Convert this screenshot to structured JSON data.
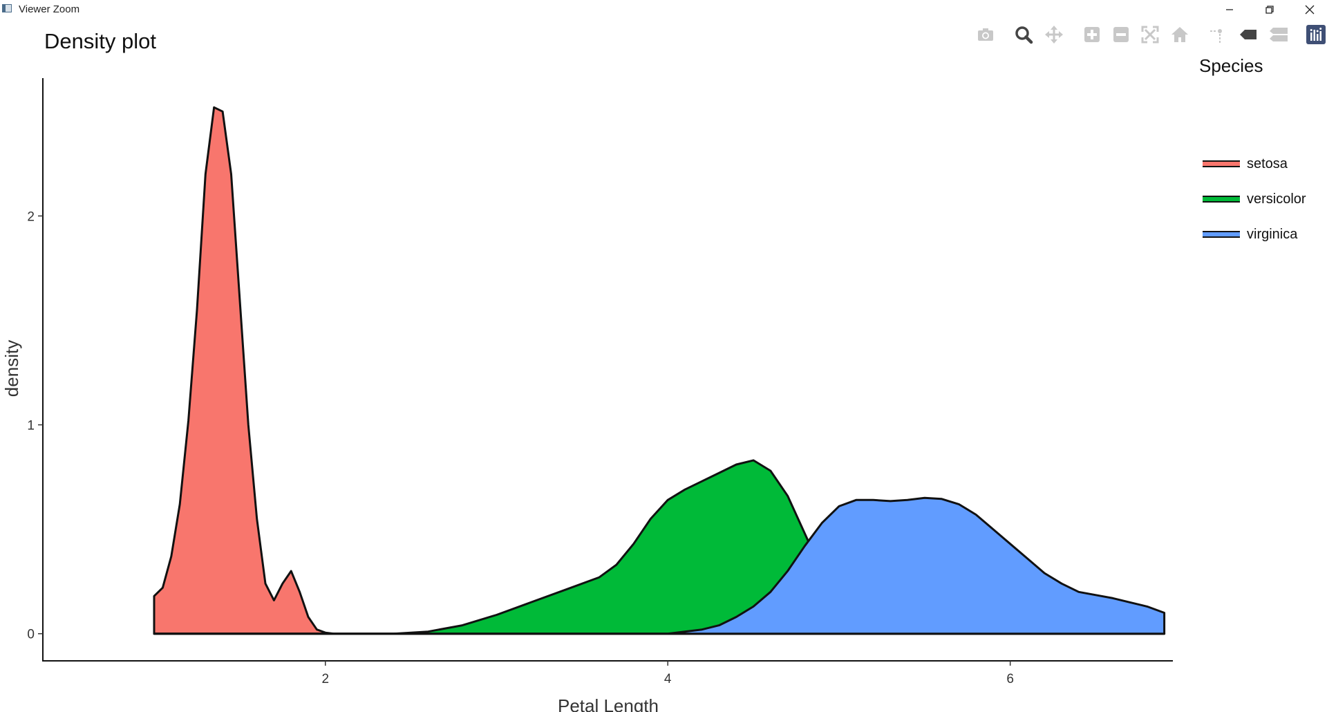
{
  "window": {
    "title": "Viewer Zoom",
    "controls": [
      "minimize-icon",
      "restore-icon",
      "close-icon"
    ]
  },
  "modebar": {
    "buttons": [
      {
        "name": "camera-icon",
        "label": "Download plot as a png"
      },
      {
        "name": "zoom-icon",
        "label": "Zoom"
      },
      {
        "name": "pan-icon",
        "label": "Pan"
      },
      {
        "name": "zoom-in-icon",
        "label": "Zoom in"
      },
      {
        "name": "zoom-out-icon",
        "label": "Zoom out"
      },
      {
        "name": "autoscale-icon",
        "label": "Autoscale"
      },
      {
        "name": "reset-axes-icon",
        "label": "Reset axes"
      },
      {
        "name": "spike-lines-icon",
        "label": "Toggle Spike Lines"
      },
      {
        "name": "hover-closest-icon",
        "label": "Show closest data on hover"
      },
      {
        "name": "hover-compare-icon",
        "label": "Compare data on hover"
      },
      {
        "name": "plotly-logo-icon",
        "label": "Produced with Plotly"
      }
    ],
    "active_color": "#444444",
    "inactive_color": "#c8c8c8",
    "logo_color": "#3f4f75"
  },
  "chart_data": {
    "type": "area",
    "title": "Density plot",
    "xlabel": "Petal Length",
    "ylabel": "density",
    "xlim": [
      0.35,
      6.95
    ],
    "ylim": [
      -0.13,
      2.66
    ],
    "xticks": [
      2,
      4,
      6
    ],
    "yticks": [
      0,
      1,
      2
    ],
    "grid": false,
    "legend": {
      "title": "Species",
      "position": "right"
    },
    "series": [
      {
        "name": "setosa",
        "color": "#F8766D",
        "x": [
          1.0,
          1.05,
          1.1,
          1.15,
          1.2,
          1.25,
          1.3,
          1.35,
          1.4,
          1.45,
          1.5,
          1.55,
          1.6,
          1.65,
          1.7,
          1.75,
          1.8,
          1.85,
          1.9,
          1.95,
          2.0,
          2.05,
          2.1
        ],
        "y": [
          0.18,
          0.22,
          0.37,
          0.62,
          1.02,
          1.55,
          2.2,
          2.52,
          2.5,
          2.2,
          1.6,
          1.0,
          0.55,
          0.24,
          0.16,
          0.24,
          0.3,
          0.2,
          0.08,
          0.02,
          0.005,
          0.0,
          0.0
        ]
      },
      {
        "name": "versicolor",
        "color": "#00BA38",
        "x": [
          2.4,
          2.6,
          2.8,
          3.0,
          3.2,
          3.4,
          3.6,
          3.7,
          3.8,
          3.9,
          4.0,
          4.1,
          4.2,
          4.3,
          4.4,
          4.5,
          4.6,
          4.7,
          4.8,
          4.9,
          5.0,
          5.1,
          5.2,
          5.3,
          5.4,
          5.5
        ],
        "y": [
          0.0,
          0.01,
          0.04,
          0.09,
          0.15,
          0.21,
          0.27,
          0.33,
          0.43,
          0.55,
          0.64,
          0.69,
          0.73,
          0.77,
          0.81,
          0.83,
          0.78,
          0.66,
          0.48,
          0.3,
          0.16,
          0.08,
          0.03,
          0.01,
          0.003,
          0.0
        ]
      },
      {
        "name": "virginica",
        "color": "#619CFF",
        "x": [
          3.8,
          4.0,
          4.1,
          4.2,
          4.3,
          4.4,
          4.5,
          4.6,
          4.7,
          4.8,
          4.9,
          5.0,
          5.1,
          5.2,
          5.3,
          5.4,
          5.5,
          5.6,
          5.7,
          5.8,
          5.9,
          6.0,
          6.1,
          6.2,
          6.3,
          6.4,
          6.5,
          6.6,
          6.7,
          6.8,
          6.9
        ],
        "y": [
          0.0,
          0.0,
          0.01,
          0.02,
          0.04,
          0.08,
          0.13,
          0.2,
          0.3,
          0.42,
          0.53,
          0.61,
          0.64,
          0.64,
          0.635,
          0.64,
          0.65,
          0.645,
          0.62,
          0.57,
          0.5,
          0.43,
          0.36,
          0.29,
          0.24,
          0.2,
          0.185,
          0.17,
          0.15,
          0.13,
          0.1
        ]
      }
    ]
  }
}
